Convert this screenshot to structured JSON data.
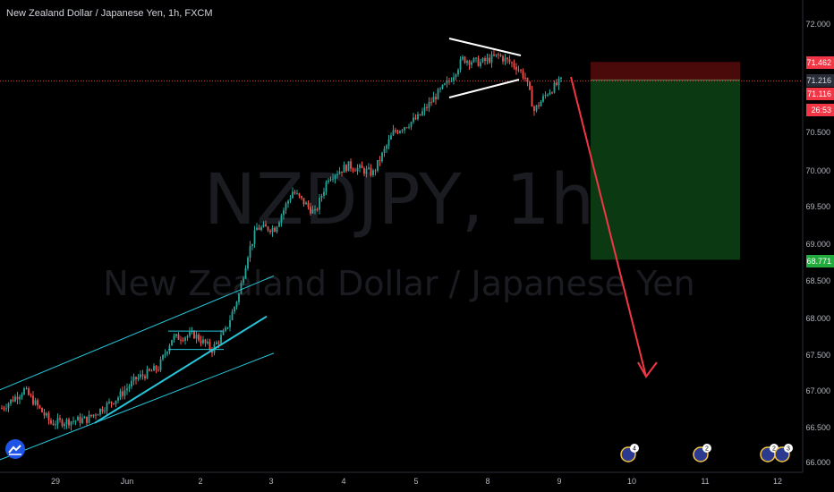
{
  "header": {
    "title": "New Zealand Dollar / Japanese Yen, 1h, FXCM"
  },
  "watermark": {
    "symbol": "NZDJPY, 1h",
    "name": "New Zealand Dollar / Japanese Yen"
  },
  "colors": {
    "background": "#000000",
    "bull": "#26a69a",
    "bear": "#ef5350",
    "channel": "#26c6da",
    "triangle": "#ffffff",
    "arrow": "#f23645",
    "stop_zone": "#4a0a0a",
    "target_zone": "#0b3a12",
    "price_line": "#f23645"
  },
  "events": [
    {
      "label": "4",
      "date_label": "10"
    },
    {
      "label": "2",
      "date_label": "11"
    },
    {
      "label": "2",
      "date_label": "12"
    },
    {
      "label": "3",
      "date_label": "12"
    }
  ],
  "chart_data": {
    "type": "candlestick",
    "timeframe": "1h",
    "x_ticks": [
      "29",
      "Jun",
      "2",
      "3",
      "4",
      "5",
      "8",
      "9",
      "10",
      "11",
      "12"
    ],
    "y_ticks": [
      "66.000",
      "66.500",
      "67.000",
      "67.500",
      "68.000",
      "68.500",
      "69.000",
      "69.500",
      "70.000",
      "70.500",
      "71.000",
      "72.000"
    ],
    "ylim": [
      66.0,
      72.0
    ],
    "price_labels": [
      {
        "value": 71.462,
        "text": "71.462",
        "role": "stop"
      },
      {
        "value": 71.216,
        "text": "71.216",
        "role": "entry"
      },
      {
        "value": 71.116,
        "text": "71.116",
        "role": "current"
      },
      {
        "value": 71.116,
        "text": "26:53",
        "role": "countdown"
      },
      {
        "value": 68.771,
        "text": "68.771",
        "role": "target"
      }
    ],
    "anchors": [
      {
        "i": 0,
        "p": 66.75
      },
      {
        "i": 10,
        "p": 67.0
      },
      {
        "i": 22,
        "p": 66.55
      },
      {
        "i": 38,
        "p": 66.6
      },
      {
        "i": 52,
        "p": 66.9
      },
      {
        "i": 60,
        "p": 67.15
      },
      {
        "i": 70,
        "p": 67.3
      },
      {
        "i": 76,
        "p": 67.7
      },
      {
        "i": 86,
        "p": 67.75
      },
      {
        "i": 94,
        "p": 67.55
      },
      {
        "i": 100,
        "p": 67.8
      },
      {
        "i": 106,
        "p": 68.3
      },
      {
        "i": 110,
        "p": 68.85
      },
      {
        "i": 114,
        "p": 69.2
      },
      {
        "i": 122,
        "p": 69.2
      },
      {
        "i": 130,
        "p": 69.7
      },
      {
        "i": 140,
        "p": 69.4
      },
      {
        "i": 146,
        "p": 69.9
      },
      {
        "i": 155,
        "p": 70.05
      },
      {
        "i": 166,
        "p": 69.95
      },
      {
        "i": 175,
        "p": 70.5
      },
      {
        "i": 186,
        "p": 70.7
      },
      {
        "i": 194,
        "p": 71.0
      },
      {
        "i": 200,
        "p": 71.2
      },
      {
        "i": 206,
        "p": 71.5
      },
      {
        "i": 214,
        "p": 71.45
      },
      {
        "i": 222,
        "p": 71.55
      },
      {
        "i": 230,
        "p": 71.4
      },
      {
        "i": 234,
        "p": 71.25
      },
      {
        "i": 238,
        "p": 70.8
      },
      {
        "i": 244,
        "p": 71.05
      },
      {
        "i": 250,
        "p": 71.2
      }
    ],
    "candle_count": 251,
    "candle_x_start": 0,
    "candle_x_end": 250,
    "channel": {
      "upper": [
        [
          0,
          67.0
        ],
        [
          306,
          68.55
        ]
      ],
      "lower": [
        [
          0,
          66.05
        ],
        [
          306,
          67.5
        ]
      ],
      "mid_support": [
        [
          106,
          66.55
        ],
        [
          298,
          68.0
        ]
      ]
    },
    "flag_box": {
      "top": 67.8,
      "bottom": 67.55,
      "x1": 188,
      "x2": 250
    },
    "triangle": {
      "upper": [
        [
          502,
          72.0
        ],
        [
          582,
          71.6
        ]
      ],
      "lower": [
        [
          502,
          70.75
        ],
        [
          580,
          71.15
        ]
      ]
    },
    "position": {
      "type": "short",
      "entry": 71.216,
      "stop": 71.462,
      "target": 68.771,
      "x1": 660,
      "x2": 827
    },
    "arrow": {
      "from": [
        638,
        71.2
      ],
      "to": [
        722,
        67.15
      ]
    },
    "grid": false,
    "legend": "none"
  }
}
